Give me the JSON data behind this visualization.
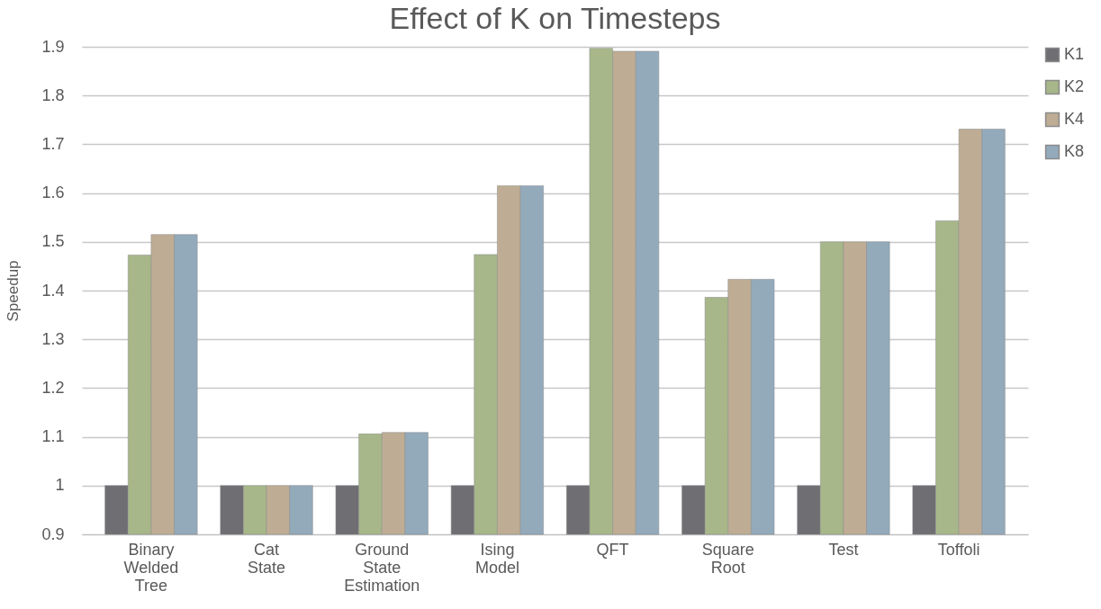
{
  "chart_data": {
    "type": "bar",
    "title": "Effect of K on Timesteps",
    "ylabel": "Speedup",
    "categories": [
      "Binary Welded Tree",
      "Cat State",
      "Ground State Estimation",
      "Ising Model",
      "QFT",
      "Square Root",
      "Test",
      "Toffoli"
    ],
    "series": [
      {
        "name": "K1",
        "color": "#6f6e73",
        "values": [
          1,
          1,
          1,
          1,
          1,
          1,
          1,
          1
        ]
      },
      {
        "name": "K2",
        "color": "#a7b789",
        "values": [
          1.473,
          1,
          1.106,
          1.474,
          1.897,
          1.386,
          1.5,
          1.543
        ]
      },
      {
        "name": "K4",
        "color": "#bead94",
        "values": [
          1.515,
          1,
          1.109,
          1.615,
          1.891,
          1.423,
          1.5,
          1.731
        ]
      },
      {
        "name": "K8",
        "color": "#93aabb",
        "values": [
          1.515,
          1,
          1.109,
          1.615,
          1.891,
          1.423,
          1.5,
          1.731
        ]
      }
    ],
    "ylim": [
      0.9,
      1.9
    ],
    "yticks": [
      0.9,
      1,
      1.1,
      1.2,
      1.3,
      1.4,
      1.5,
      1.6,
      1.7,
      1.8,
      1.9
    ],
    "grid": "y",
    "legend": "right"
  }
}
